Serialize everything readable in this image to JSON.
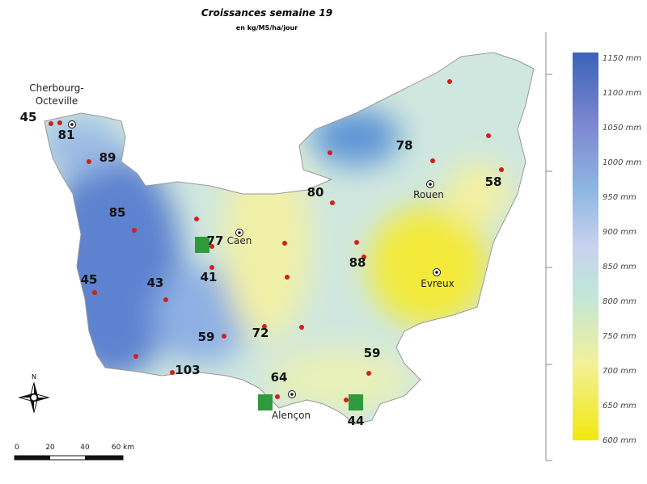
{
  "header": {
    "title": "Croissances semaine 19",
    "subtitle": "en kg/MS/ha/jour"
  },
  "cities": [
    [
      "Cherbourg-",
      "Octeville"
    ],
    [
      "Caen"
    ],
    [
      "Rouen"
    ],
    [
      "Evreux"
    ],
    [
      "Alençon"
    ]
  ],
  "growth_labels": [
    45,
    81,
    89,
    85,
    77,
    45,
    43,
    41,
    59,
    103,
    72,
    64,
    44,
    59,
    88,
    80,
    78,
    58
  ],
  "legend": {
    "labels": [
      "1150 mm",
      "1100 mm",
      "1050 mm",
      "1000 mm",
      "950 mm",
      "900 mm",
      "850 mm",
      "800 mm",
      "750 mm",
      "700 mm",
      "650 mm",
      "600 mm"
    ]
  },
  "scale": {
    "labels": [
      "0",
      "20",
      "40",
      "60 km"
    ]
  },
  "compass": "N"
}
